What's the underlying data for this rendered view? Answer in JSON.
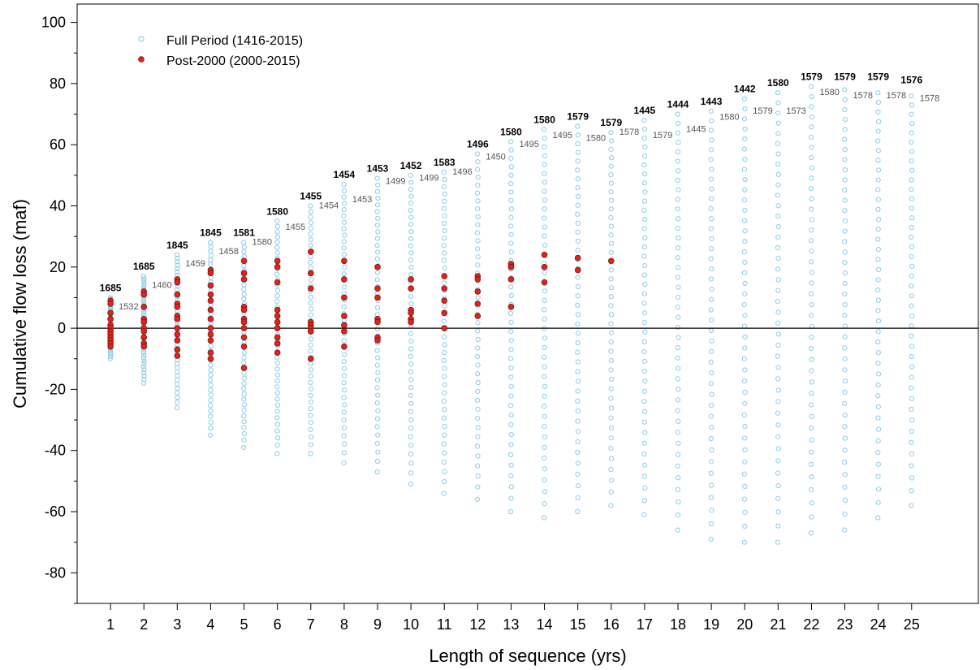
{
  "chart_data": {
    "type": "scatter",
    "title": "",
    "xlabel": "Length of sequence (yrs)",
    "ylabel": "Cumulative flow loss (maf)",
    "xlim": [
      0,
      27
    ],
    "ylim": [
      -90,
      106
    ],
    "x_ticks": [
      1,
      2,
      3,
      4,
      5,
      6,
      7,
      8,
      9,
      10,
      11,
      12,
      13,
      14,
      15,
      16,
      17,
      18,
      19,
      20,
      21,
      22,
      23,
      24,
      25
    ],
    "y_ticks": [
      -80,
      -60,
      -40,
      -20,
      0,
      20,
      40,
      60,
      80,
      100
    ],
    "zero_line": true,
    "grid": false,
    "legend_position": "top-left",
    "colors": {
      "full_period_stroke": "#8ccbea",
      "post2000_fill": "#e2231a",
      "post2000_stroke": "#7a1410",
      "zero_line": "#000000"
    },
    "series": [
      {
        "name": "Full Period (1416-2015)",
        "marker": "open-circle",
        "color": "#8ccbea",
        "ranges": [
          {
            "x": 1,
            "min": -10,
            "max": 10
          },
          {
            "x": 2,
            "min": -18,
            "max": 17
          },
          {
            "x": 3,
            "min": -26,
            "max": 24
          },
          {
            "x": 4,
            "min": -35,
            "max": 28
          },
          {
            "x": 5,
            "min": -39,
            "max": 28
          },
          {
            "x": 6,
            "min": -41,
            "max": 35
          },
          {
            "x": 7,
            "min": -41,
            "max": 40
          },
          {
            "x": 8,
            "min": -44,
            "max": 47
          },
          {
            "x": 9,
            "min": -47,
            "max": 49
          },
          {
            "x": 10,
            "min": -51,
            "max": 50
          },
          {
            "x": 11,
            "min": -54,
            "max": 51
          },
          {
            "x": 12,
            "min": -56,
            "max": 57
          },
          {
            "x": 13,
            "min": -60,
            "max": 61
          },
          {
            "x": 14,
            "min": -62,
            "max": 65
          },
          {
            "x": 15,
            "min": -60,
            "max": 66
          },
          {
            "x": 16,
            "min": -58,
            "max": 64
          },
          {
            "x": 17,
            "min": -61,
            "max": 68
          },
          {
            "x": 18,
            "min": -66,
            "max": 70
          },
          {
            "x": 19,
            "min": -69,
            "max": 71
          },
          {
            "x": 20,
            "min": -70,
            "max": 75
          },
          {
            "x": 21,
            "min": -70,
            "max": 77
          },
          {
            "x": 22,
            "min": -67,
            "max": 79
          },
          {
            "x": 23,
            "min": -66,
            "max": 78
          },
          {
            "x": 24,
            "min": -62,
            "max": 77
          },
          {
            "x": 25,
            "min": -58,
            "max": 76
          }
        ]
      },
      {
        "name": "Post-2000 (2000-2015)",
        "marker": "filled-circle",
        "color": "#e2231a",
        "points": [
          {
            "x": 1,
            "y": [
              9,
              8,
              5,
              3,
              1,
              0,
              -1,
              -2,
              -3,
              -4,
              -5,
              -6
            ]
          },
          {
            "x": 2,
            "y": [
              12,
              11,
              7,
              3,
              2,
              0,
              -1,
              -3,
              -5,
              -6
            ]
          },
          {
            "x": 3,
            "y": [
              16,
              15,
              11,
              8,
              7,
              4,
              3,
              0,
              -2,
              -4,
              -7,
              -9
            ]
          },
          {
            "x": 4,
            "y": [
              19,
              18,
              14,
              11,
              9,
              6,
              3,
              0,
              -2,
              -4,
              -8,
              -10
            ]
          },
          {
            "x": 5,
            "y": [
              22,
              18,
              16,
              7,
              6,
              3,
              2,
              0,
              -3,
              -6,
              -13
            ]
          },
          {
            "x": 6,
            "y": [
              22,
              20,
              15,
              6,
              4,
              2,
              0,
              -3,
              -5,
              -8
            ]
          },
          {
            "x": 7,
            "y": [
              25,
              18,
              13,
              2,
              1,
              0,
              -1,
              -10
            ]
          },
          {
            "x": 8,
            "y": [
              22,
              16,
              10,
              4,
              1,
              -1,
              -6
            ]
          },
          {
            "x": 9,
            "y": [
              20,
              13,
              10,
              3,
              2,
              -3,
              -4
            ]
          },
          {
            "x": 10,
            "y": [
              16,
              13,
              6,
              5,
              3,
              2
            ]
          },
          {
            "x": 11,
            "y": [
              17,
              13,
              9,
              5,
              0
            ]
          },
          {
            "x": 12,
            "y": [
              17,
              16,
              12,
              8,
              4
            ]
          },
          {
            "x": 13,
            "y": [
              21,
              20,
              16,
              7
            ]
          },
          {
            "x": 14,
            "y": [
              24,
              20,
              15
            ]
          },
          {
            "x": 15,
            "y": [
              23,
              19
            ]
          },
          {
            "x": 16,
            "y": [
              22
            ]
          }
        ]
      }
    ],
    "annotations": [
      {
        "x": 1,
        "top": "1685",
        "top_y": 10,
        "second": "1532",
        "second_y": 7
      },
      {
        "x": 2,
        "top": "1685",
        "top_y": 17,
        "second": "1460",
        "second_y": 14
      },
      {
        "x": 3,
        "top": "1845",
        "top_y": 24,
        "second": "1459",
        "second_y": 21
      },
      {
        "x": 4,
        "top": "1845",
        "top_y": 28,
        "second": "1458",
        "second_y": 25
      },
      {
        "x": 5,
        "top": "1581",
        "top_y": 28,
        "second": "1580",
        "second_y": 28
      },
      {
        "x": 6,
        "top": "1580",
        "top_y": 35,
        "second": "1455",
        "second_y": 33
      },
      {
        "x": 7,
        "top": "1455",
        "top_y": 40,
        "second": "1454",
        "second_y": 40
      },
      {
        "x": 8,
        "top": "1454",
        "top_y": 47,
        "second": "1453",
        "second_y": 42
      },
      {
        "x": 9,
        "top": "1453",
        "top_y": 49,
        "second": "1499",
        "second_y": 48
      },
      {
        "x": 10,
        "top": "1452",
        "top_y": 50,
        "second": "1499",
        "second_y": 49
      },
      {
        "x": 11,
        "top": "1583",
        "top_y": 51,
        "second": "1496",
        "second_y": 51
      },
      {
        "x": 12,
        "top": "1496",
        "top_y": 57,
        "second": "1450",
        "second_y": 56
      },
      {
        "x": 13,
        "top": "1580",
        "top_y": 61,
        "second": "1495",
        "second_y": 60
      },
      {
        "x": 14,
        "top": "1580",
        "top_y": 65,
        "second": "1495",
        "second_y": 63
      },
      {
        "x": 15,
        "top": "1579",
        "top_y": 66,
        "second": "1580",
        "second_y": 62
      },
      {
        "x": 16,
        "top": "1579",
        "top_y": 64,
        "second": "1578",
        "second_y": 64
      },
      {
        "x": 17,
        "top": "1445",
        "top_y": 68,
        "second": "1579",
        "second_y": 63
      },
      {
        "x": 18,
        "top": "1444",
        "top_y": 70,
        "second": "1445",
        "second_y": 65
      },
      {
        "x": 19,
        "top": "1443",
        "top_y": 71,
        "second": "1580",
        "second_y": 69
      },
      {
        "x": 20,
        "top": "1442",
        "top_y": 75,
        "second": "1579",
        "second_y": 71
      },
      {
        "x": 21,
        "top": "1580",
        "top_y": 77,
        "second": "1573",
        "second_y": 71
      },
      {
        "x": 22,
        "top": "1579",
        "top_y": 79,
        "second": "1580",
        "second_y": 77
      },
      {
        "x": 23,
        "top": "1579",
        "top_y": 79,
        "second": "1578",
        "second_y": 76
      },
      {
        "x": 24,
        "top": "1579",
        "top_y": 79,
        "second": "1578",
        "second_y": 76
      },
      {
        "x": 25,
        "top": "1576",
        "top_y": 78,
        "second": "1578",
        "second_y": 75
      }
    ]
  }
}
